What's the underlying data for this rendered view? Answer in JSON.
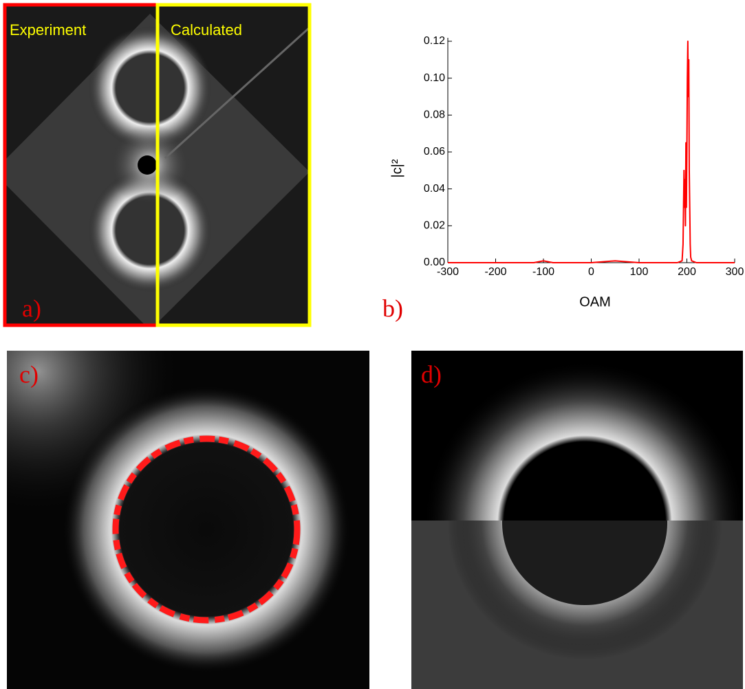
{
  "panels": {
    "a": {
      "label": "a)",
      "left_label": "Experiment",
      "right_label": "Calculated"
    },
    "c": {
      "label": "c)"
    },
    "d": {
      "label": "d)"
    }
  },
  "chart_data": {
    "type": "line",
    "panel_label": "b)",
    "x_label": "OAM",
    "y_label": "|c|²",
    "x": [
      -300,
      -200,
      -120,
      -100,
      -80,
      0,
      50,
      100,
      180,
      190,
      192,
      194,
      195,
      196,
      197,
      198,
      199,
      200,
      201,
      202,
      203,
      204,
      205,
      206,
      207,
      208,
      210,
      220,
      300
    ],
    "series": [
      {
        "color": "#ff0000",
        "values": [
          0,
          0,
          0,
          0.001,
          0,
          0,
          0.001,
          0,
          0,
          0.001,
          0.01,
          0.05,
          0.03,
          0.045,
          0.02,
          0.065,
          0.03,
          0.06,
          0.1,
          0.12,
          0.09,
          0.11,
          0.05,
          0.03,
          0.01,
          0.003,
          0.001,
          0,
          0
        ]
      }
    ],
    "xlim": [
      -300,
      300
    ],
    "ylim": [
      0,
      0.12
    ],
    "xticks": [
      -300,
      -200,
      -100,
      0,
      100,
      200,
      300
    ],
    "yticks": [
      {
        "value": 0,
        "label": "0.00"
      },
      {
        "value": 0.02,
        "label": "0.02"
      },
      {
        "value": 0.04,
        "label": "0.04"
      },
      {
        "value": 0.06,
        "label": "0.06"
      },
      {
        "value": 0.08,
        "label": "0.08"
      },
      {
        "value": 0.1,
        "label": "0.10"
      },
      {
        "value": 0.12,
        "label": "0.12"
      }
    ]
  }
}
